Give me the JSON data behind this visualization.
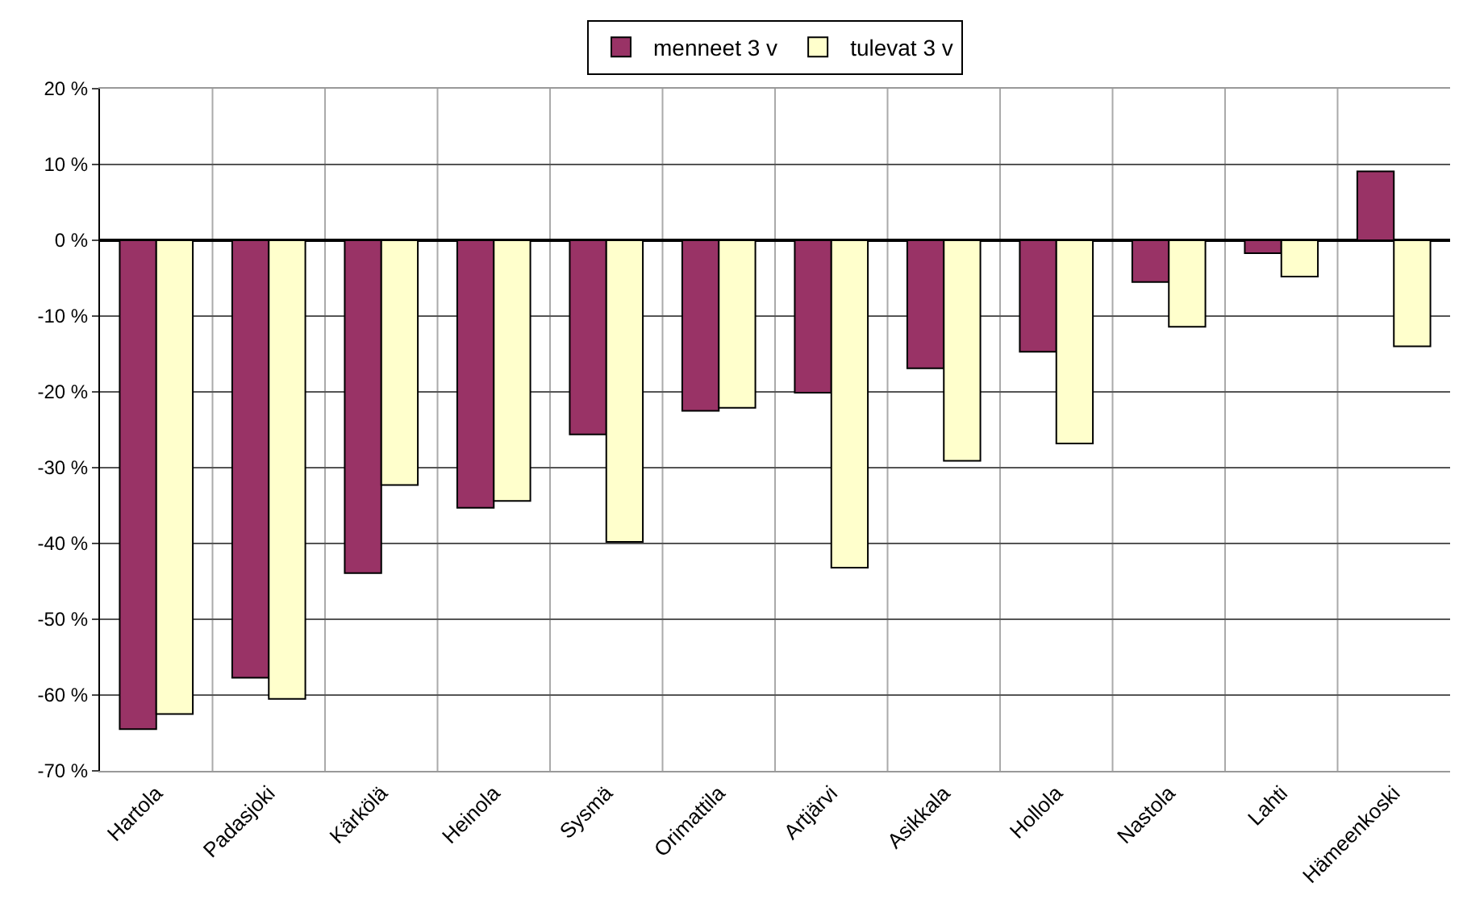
{
  "chart_data": {
    "type": "bar",
    "categories": [
      "Hartola",
      "Padasjoki",
      "Kärkölä",
      "Heinola",
      "Sysmä",
      "Orimattila",
      "Artjärvi",
      "Asikkala",
      "Hollola",
      "Nastola",
      "Lahti",
      "Hämeenkoski"
    ],
    "series": [
      {
        "name": "menneet 3 v",
        "color": "#993366",
        "values": [
          -64.5,
          -57.7,
          -43.9,
          -35.3,
          -25.6,
          -22.5,
          -20.1,
          -16.9,
          -14.7,
          -5.5,
          -1.7,
          9.1
        ]
      },
      {
        "name": "tulevat 3 v",
        "color": "#ffffcc",
        "values": [
          -62.5,
          -60.5,
          -32.3,
          -34.4,
          -39.8,
          -22.1,
          -43.2,
          -29.1,
          -26.8,
          -11.4,
          -4.8,
          -14.0
        ]
      }
    ],
    "ylim": [
      -70,
      20
    ],
    "yticks": [
      {
        "value": -70,
        "label": "-70 %"
      },
      {
        "value": -60,
        "label": "-60 %"
      },
      {
        "value": -50,
        "label": "-50 %"
      },
      {
        "value": -40,
        "label": "-40 %"
      },
      {
        "value": -30,
        "label": "-30 %"
      },
      {
        "value": -20,
        "label": "-20 %"
      },
      {
        "value": -10,
        "label": "-10 %"
      },
      {
        "value": 0,
        "label": "0 %"
      },
      {
        "value": 10,
        "label": "10 %"
      },
      {
        "value": 20,
        "label": "20 %"
      }
    ],
    "grid": true,
    "legend": "top"
  }
}
